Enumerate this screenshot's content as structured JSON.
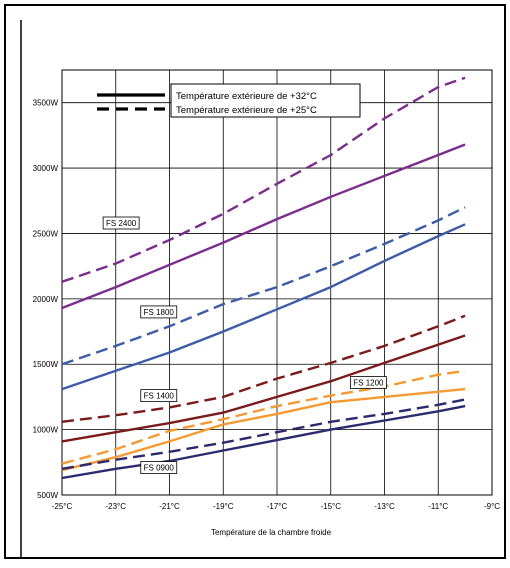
{
  "chart_data": {
    "type": "line",
    "xlabel": "Température de la chambre froide",
    "ylabel": "",
    "x_ticks": [
      "-25°C",
      "-23°C",
      "-21°C",
      "-19°C",
      "-17°C",
      "-15°C",
      "-13°C",
      "-11°C",
      "-9°C"
    ],
    "y_ticks": [
      "500W",
      "1000W",
      "1500W",
      "2000W",
      "2500W",
      "3000W",
      "3500W"
    ],
    "xlim": [
      -25,
      -9
    ],
    "ylim": [
      500,
      3750
    ],
    "grid": true,
    "legend": {
      "position": "top-left",
      "entries": [
        {
          "label": "Température extérieure de +32°C",
          "style": "solid"
        },
        {
          "label": "Température extérieure de +25°C",
          "style": "dashed"
        }
      ]
    },
    "series": [
      {
        "name": "FS 2400",
        "color": "#7b2d8e",
        "style": "solid",
        "x": [
          -25,
          -23,
          -21,
          -19,
          -17,
          -15,
          -13,
          -11,
          -10
        ],
        "y": [
          1930,
          2090,
          2260,
          2430,
          2610,
          2780,
          2940,
          3100,
          3180
        ]
      },
      {
        "name": "FS 2400",
        "color": "#7b2d8e",
        "style": "dashed",
        "x": [
          -25,
          -23,
          -21,
          -19,
          -17,
          -15,
          -13,
          -11,
          -10
        ],
        "y": [
          2130,
          2270,
          2450,
          2650,
          2880,
          3100,
          3380,
          3620,
          3690
        ]
      },
      {
        "name": "FS 1800",
        "color": "#3d5ca8",
        "style": "solid",
        "x": [
          -25,
          -23,
          -21,
          -19,
          -17,
          -15,
          -13,
          -11,
          -10
        ],
        "y": [
          1310,
          1450,
          1590,
          1750,
          1920,
          2090,
          2290,
          2480,
          2570
        ]
      },
      {
        "name": "FS 1800",
        "color": "#3d5ca8",
        "style": "dashed",
        "x": [
          -25,
          -23,
          -21,
          -19,
          -17,
          -15,
          -13,
          -11,
          -10
        ],
        "y": [
          1500,
          1640,
          1790,
          1960,
          2090,
          2250,
          2420,
          2600,
          2700
        ]
      },
      {
        "name": "FS 1400",
        "color": "#7a1a1a",
        "style": "solid",
        "x": [
          -25,
          -23,
          -21,
          -19,
          -17,
          -15,
          -13,
          -11,
          -10
        ],
        "y": [
          910,
          980,
          1050,
          1130,
          1250,
          1370,
          1510,
          1650,
          1720
        ]
      },
      {
        "name": "FS 1400",
        "color": "#7a1a1a",
        "style": "dashed",
        "x": [
          -25,
          -23,
          -21,
          -19,
          -17,
          -15,
          -13,
          -11,
          -10
        ],
        "y": [
          1060,
          1110,
          1170,
          1250,
          1390,
          1510,
          1640,
          1790,
          1870
        ]
      },
      {
        "name": "FS 1200",
        "color": "#f39a33",
        "style": "solid",
        "x": [
          -25,
          -23,
          -21,
          -19,
          -17,
          -15,
          -13,
          -11,
          -10
        ],
        "y": [
          690,
          790,
          910,
          1040,
          1120,
          1210,
          1250,
          1290,
          1310
        ]
      },
      {
        "name": "FS 1200",
        "color": "#f39a33",
        "style": "dashed",
        "x": [
          -25,
          -23,
          -21,
          -19,
          -17,
          -15,
          -13,
          -11,
          -10
        ],
        "y": [
          740,
          850,
          990,
          1080,
          1180,
          1260,
          1330,
          1420,
          1450
        ]
      },
      {
        "name": "FS 0900",
        "color": "#2c2a6e",
        "style": "solid",
        "x": [
          -25,
          -23,
          -21,
          -19,
          -17,
          -15,
          -13,
          -11,
          -10
        ],
        "y": [
          630,
          700,
          760,
          840,
          920,
          1000,
          1070,
          1140,
          1180
        ]
      },
      {
        "name": "FS 0900",
        "color": "#2c2a6e",
        "style": "dashed",
        "x": [
          -25,
          -23,
          -21,
          -19,
          -17,
          -15,
          -13,
          -11,
          -10
        ],
        "y": [
          700,
          770,
          830,
          900,
          980,
          1060,
          1120,
          1190,
          1230
        ]
      }
    ],
    "annotations": [
      {
        "text": "FS 2400",
        "x": -22.8,
        "y": 2580
      },
      {
        "text": "FS 1800",
        "x": -21.4,
        "y": 1900
      },
      {
        "text": "FS 1400",
        "x": -21.4,
        "y": 1260
      },
      {
        "text": "FS 1200",
        "x": -13.6,
        "y": 1360
      },
      {
        "text": "FS 0900",
        "x": -21.4,
        "y": 710
      }
    ]
  }
}
